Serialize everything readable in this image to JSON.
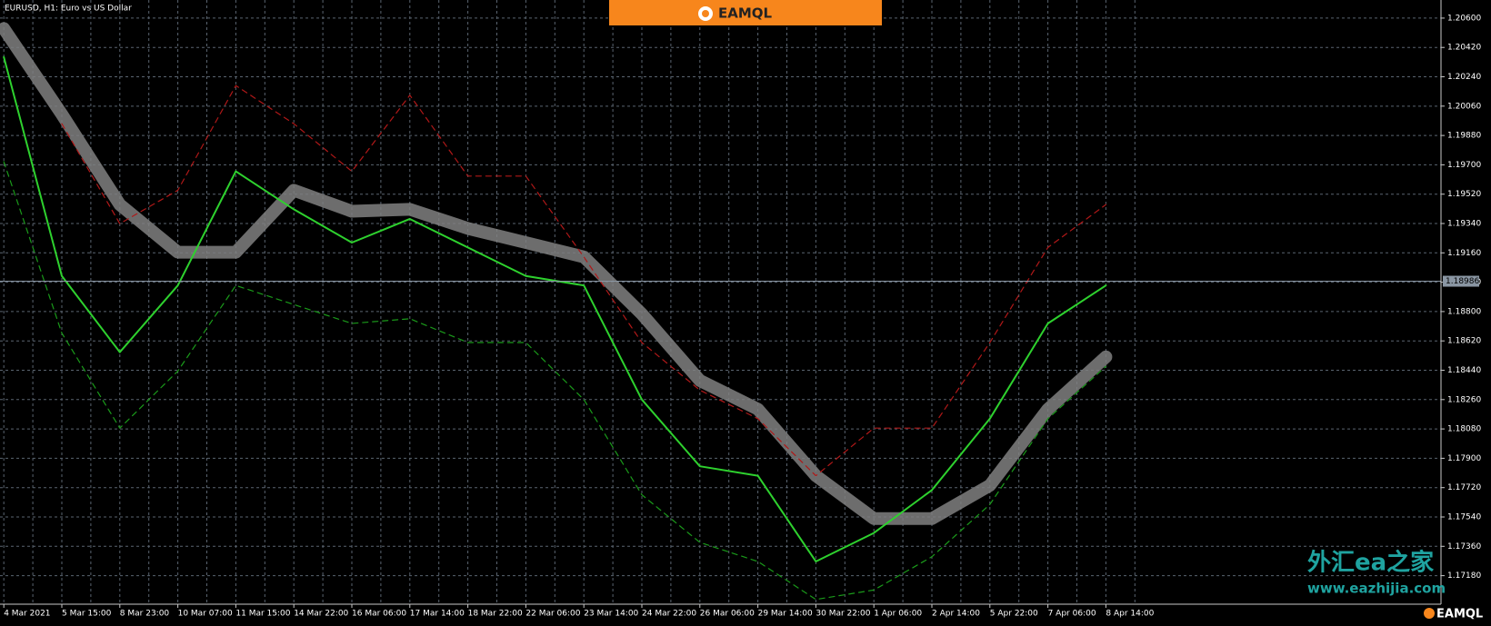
{
  "chart_data": {
    "type": "line",
    "title": "EURUSD, H1:  Euro vs US Dollar",
    "brand": "EAMQL",
    "watermark_title": "外汇ea之家",
    "watermark_url": "www.eazhijia.com",
    "categories": [
      "4 Mar 2021",
      "5 Mar 15:00",
      "8 Mar 23:00",
      "10 Mar 07:00",
      "11 Mar 15:00",
      "14 Mar 22:00",
      "16 Mar 06:00",
      "17 Mar 14:00",
      "18 Mar 22:00",
      "22 Mar 06:00",
      "23 Mar 14:00",
      "24 Mar 22:00",
      "26 Mar 06:00",
      "29 Mar 14:00",
      "30 Mar 22:00",
      "1 Apr 06:00",
      "2 Apr 14:00",
      "5 Apr 22:00",
      "7 Apr 06:00",
      "8 Apr 14:00"
    ],
    "series": [
      {
        "color": "#808080",
        "values": [
          1.20536,
          1.2001,
          1.19456,
          1.19164,
          1.19164,
          1.19544,
          1.19415,
          1.19427,
          1.1931,
          1.19223,
          1.19135,
          1.18785,
          1.18377,
          1.18201,
          1.17793,
          1.1753,
          1.1753,
          1.17734,
          1.18201,
          1.18522
        ]
      },
      {
        "color": "#b01818",
        "values": [
          null,
          1.19952,
          1.19339,
          1.19544,
          1.20186,
          1.19952,
          1.1966,
          1.20127,
          1.19631,
          1.19631,
          1.19135,
          1.1861,
          1.18318,
          1.18143,
          1.17793,
          1.18085,
          1.18085,
          1.1861,
          1.19193,
          1.19456
        ]
      },
      {
        "color": "#1a9a1a",
        "values": [
          1.19719,
          1.18668,
          1.18085,
          1.18435,
          1.1896,
          1.18843,
          1.18727,
          1.18756,
          1.1861,
          1.1861,
          1.1826,
          1.17676,
          1.17384,
          1.17267,
          1.17034,
          1.17092,
          1.17296,
          1.17617,
          1.18143,
          1.18464
        ]
      },
      {
        "color": "#2ed12e",
        "values": [
          1.20361,
          1.19018,
          1.18551,
          1.1896,
          1.1966,
          1.19427,
          1.19223,
          1.19368,
          1.19193,
          1.19018,
          1.1896,
          1.1826,
          1.17851,
          1.17793,
          1.17267,
          1.17442,
          1.17705,
          1.18143,
          1.18727,
          1.1896
        ]
      }
    ],
    "current_price": 1.18986,
    "ylim": [
      1.17005,
      1.20711
    ],
    "yticks": [
      {
        "value": 1.206,
        "label": "1.20600"
      },
      {
        "value": 1.2042,
        "label": "1.20420"
      },
      {
        "value": 1.2024,
        "label": "1.20240"
      },
      {
        "value": 1.2006,
        "label": "1.20060"
      },
      {
        "value": 1.1988,
        "label": "1.19880"
      },
      {
        "value": 1.197,
        "label": "1.19700"
      },
      {
        "value": 1.1952,
        "label": "1.19520"
      },
      {
        "value": 1.1934,
        "label": "1.19340"
      },
      {
        "value": 1.1916,
        "label": "1.19160"
      },
      {
        "value": 1.1898,
        "label": "1.18980"
      },
      {
        "value": 1.188,
        "label": "1.18800"
      },
      {
        "value": 1.1862,
        "label": "1.18620"
      },
      {
        "value": 1.1844,
        "label": "1.18440"
      },
      {
        "value": 1.1826,
        "label": "1.18260"
      },
      {
        "value": 1.1808,
        "label": "1.18080"
      },
      {
        "value": 1.179,
        "label": "1.17900"
      },
      {
        "value": 1.1772,
        "label": "1.17720"
      },
      {
        "value": 1.1754,
        "label": "1.17540"
      },
      {
        "value": 1.1736,
        "label": "1.17360"
      },
      {
        "value": 1.1718,
        "label": "1.17180"
      }
    ],
    "grid": true
  }
}
